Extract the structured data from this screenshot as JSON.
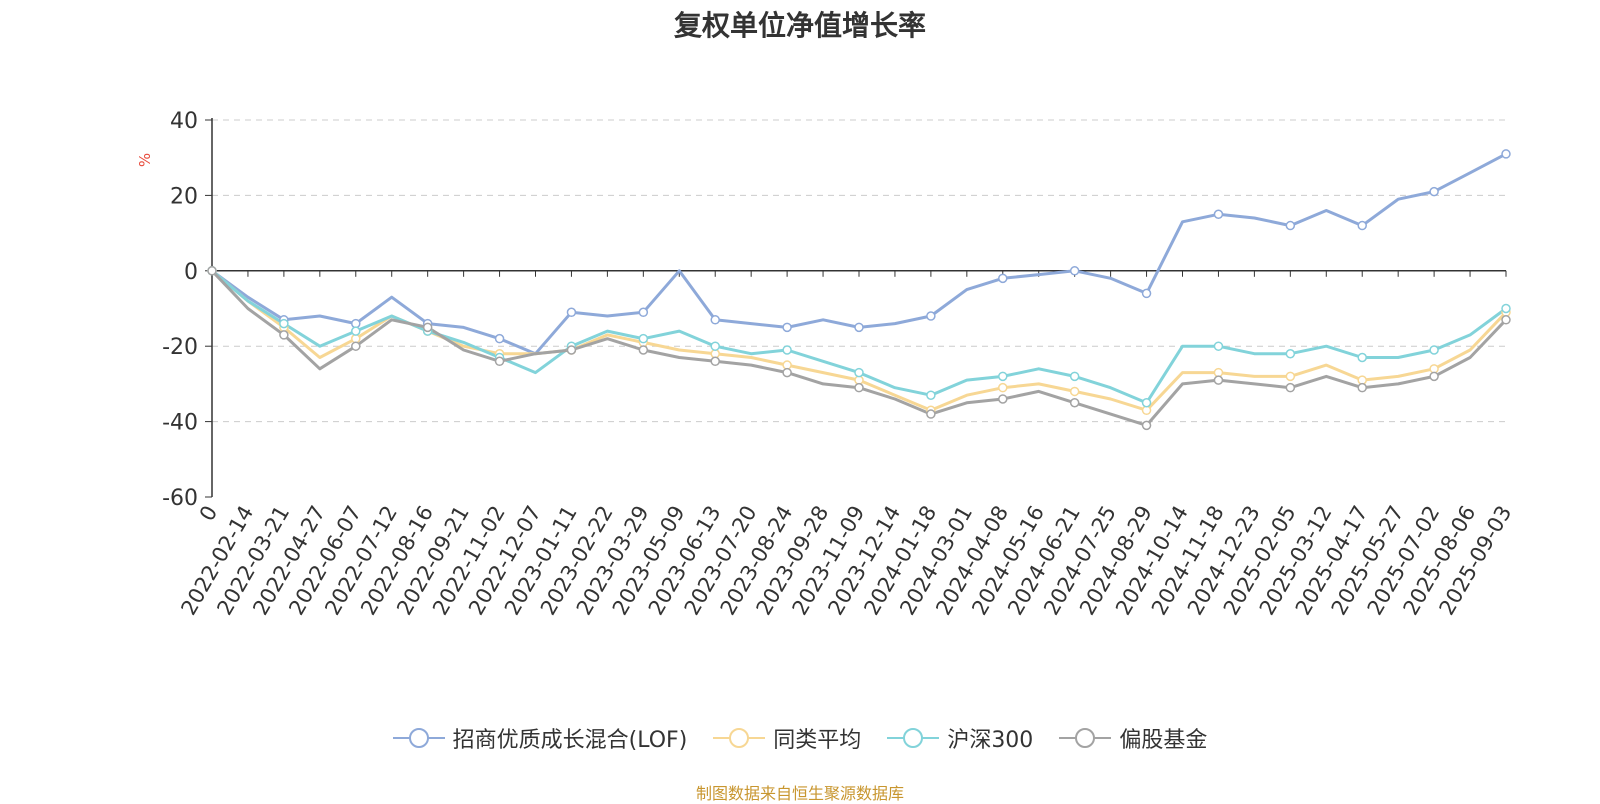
{
  "chart_data": {
    "type": "line",
    "title": "复权单位净值增长率",
    "ylabel": "%",
    "ylim": [
      -60,
      40
    ],
    "yticks": [
      40,
      20,
      0,
      -20,
      -40,
      -60
    ],
    "grid": true,
    "legend_position": "bottom-center",
    "x_tick_labels": [
      "0",
      "2022-02-14",
      "2022-03-21",
      "2022-04-27",
      "2022-06-07",
      "2022-07-12",
      "2022-08-16",
      "2022-09-21",
      "2022-11-02",
      "2022-12-07",
      "2023-01-11",
      "2023-02-22",
      "2023-03-29",
      "2023-05-09",
      "2023-06-13",
      "2023-07-20",
      "2023-08-24",
      "2023-09-28",
      "2023-11-09",
      "2023-12-14",
      "2024-01-18",
      "2024-03-01",
      "2024-04-08",
      "2024-05-16",
      "2024-06-21",
      "2024-07-25",
      "2024-08-29",
      "2024-10-14",
      "2024-11-18",
      "2024-12-23",
      "2025-02-05",
      "2025-03-12",
      "2025-04-17",
      "2025-05-27",
      "2025-07-02",
      "2025-08-06",
      "2025-09-03"
    ],
    "source_note": "制图数据来自恒生聚源数据库",
    "series": [
      {
        "name": "招商优质成长混合(LOF)",
        "color": "#8ea9d9",
        "values": [
          0,
          -7,
          -13,
          -12,
          -14,
          -7,
          -14,
          -15,
          -18,
          -22,
          -11,
          -12,
          -11,
          0,
          -13,
          -14,
          -15,
          -13,
          -15,
          -14,
          -12,
          -5,
          -2,
          -1,
          0,
          -2,
          -6,
          13,
          15,
          14,
          12,
          16,
          12,
          19,
          21,
          26,
          31
        ]
      },
      {
        "name": "同类平均",
        "color": "#f7d794",
        "values": [
          0,
          -8,
          -15,
          -23,
          -18,
          -12,
          -16,
          -20,
          -22,
          -22,
          -21,
          -17,
          -19,
          -21,
          -22,
          -23,
          -25,
          -27,
          -29,
          -33,
          -37,
          -33,
          -31,
          -30,
          -32,
          -34,
          -37,
          -27,
          -27,
          -28,
          -28,
          -25,
          -29,
          -28,
          -26,
          -21,
          -11
        ]
      },
      {
        "name": "沪深300",
        "color": "#82d3da",
        "values": [
          0,
          -8,
          -14,
          -20,
          -16,
          -12,
          -16,
          -19,
          -23,
          -27,
          -20,
          -16,
          -18,
          -16,
          -20,
          -22,
          -21,
          -24,
          -27,
          -31,
          -33,
          -29,
          -28,
          -26,
          -28,
          -31,
          -35,
          -20,
          -20,
          -22,
          -22,
          -20,
          -23,
          -23,
          -21,
          -17,
          -10
        ]
      },
      {
        "name": "偏股基金",
        "color": "#a3a3a3",
        "values": [
          0,
          -10,
          -17,
          -26,
          -20,
          -13,
          -15,
          -21,
          -24,
          -22,
          -21,
          -18,
          -21,
          -23,
          -24,
          -25,
          -27,
          -30,
          -31,
          -34,
          -38,
          -35,
          -34,
          -32,
          -35,
          -38,
          -41,
          -30,
          -29,
          -30,
          -31,
          -28,
          -31,
          -30,
          -28,
          -23,
          -13
        ]
      }
    ]
  }
}
